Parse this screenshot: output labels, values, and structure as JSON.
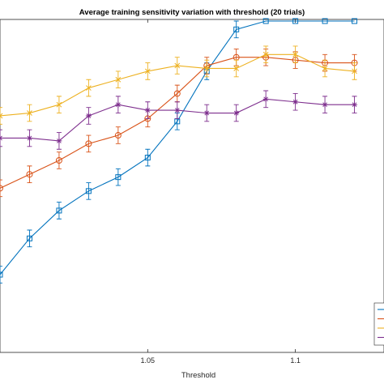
{
  "chart_data": {
    "type": "line",
    "title": "Average training sensitivity variation with threshold (20 trials)",
    "xlabel": "Threshold",
    "ylabel": "",
    "xlim": [
      1.0,
      1.13
    ],
    "ylim": [
      0.0,
      1.0
    ],
    "x_ticks": [
      1.05,
      1.1
    ],
    "x_tick_labels": [
      "1.05",
      "1.1"
    ],
    "grid": false,
    "legend_position": "bottom-right",
    "x": [
      1.0,
      1.01,
      1.02,
      1.03,
      1.04,
      1.05,
      1.06,
      1.07,
      1.08,
      1.09,
      1.1,
      1.11,
      1.12
    ],
    "series": [
      {
        "color": "#0072BD",
        "marker": "square",
        "values": [
          0.09,
          0.22,
          0.32,
          0.39,
          0.44,
          0.51,
          0.64,
          0.82,
          0.97,
          1.0,
          1.0,
          1.0,
          1.0
        ],
        "errors": [
          0.03,
          0.03,
          0.03,
          0.03,
          0.03,
          0.03,
          0.03,
          0.03,
          0.03,
          0.0,
          0.0,
          0.0,
          0.0
        ]
      },
      {
        "color": "#D95319",
        "marker": "circle",
        "values": [
          0.4,
          0.45,
          0.5,
          0.56,
          0.59,
          0.65,
          0.74,
          0.84,
          0.87,
          0.87,
          0.86,
          0.85,
          0.85
        ],
        "errors": [
          0.03,
          0.03,
          0.03,
          0.03,
          0.03,
          0.03,
          0.03,
          0.03,
          0.03,
          0.03,
          0.03,
          0.03,
          0.03
        ]
      },
      {
        "color": "#EDB120",
        "marker": "x",
        "values": [
          0.66,
          0.67,
          0.7,
          0.76,
          0.79,
          0.82,
          0.84,
          0.83,
          0.83,
          0.88,
          0.88,
          0.83,
          0.82
        ],
        "errors": [
          0.03,
          0.03,
          0.03,
          0.03,
          0.03,
          0.03,
          0.03,
          0.03,
          0.03,
          0.03,
          0.03,
          0.03,
          0.03
        ]
      },
      {
        "color": "#7E2F8E",
        "marker": "star",
        "values": [
          0.58,
          0.58,
          0.57,
          0.66,
          0.7,
          0.68,
          0.68,
          0.67,
          0.67,
          0.72,
          0.71,
          0.7,
          0.7
        ],
        "errors": [
          0.03,
          0.03,
          0.03,
          0.03,
          0.03,
          0.03,
          0.03,
          0.03,
          0.03,
          0.03,
          0.03,
          0.03,
          0.03
        ]
      }
    ]
  }
}
